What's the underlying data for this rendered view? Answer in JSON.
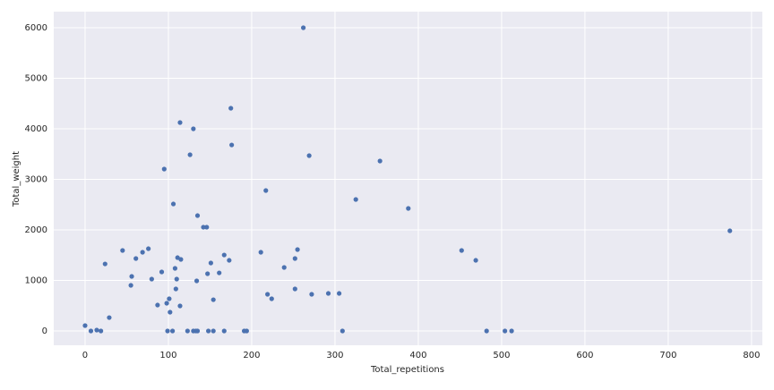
{
  "chart_data": {
    "type": "scatter",
    "xlabel": "Total_repetitions",
    "ylabel": "Total_weight",
    "x": [
      0,
      7,
      14,
      19,
      24,
      29,
      45,
      55,
      56,
      61,
      69,
      76,
      80,
      87,
      92,
      95,
      98,
      99,
      101,
      102,
      105,
      106,
      108,
      109,
      110,
      111,
      114,
      114,
      115,
      123,
      126,
      130,
      130,
      133,
      134,
      135,
      135,
      142,
      146,
      147,
      148,
      151,
      154,
      154,
      161,
      167,
      167,
      173,
      175,
      176,
      191,
      194,
      211,
      217,
      219,
      224,
      239,
      252,
      252,
      255,
      262,
      269,
      272,
      292,
      305,
      309,
      325,
      354,
      388,
      452,
      469,
      482,
      504,
      512,
      774
    ],
    "values": [
      106,
      0,
      18,
      0,
      1327,
      265,
      1593,
      903,
      1080,
      1434,
      1558,
      1628,
      1027,
      513,
      1168,
      3204,
      549,
      0,
      637,
      372,
      0,
      2513,
      1239,
      832,
      1027,
      1451,
      496,
      4124,
      1416,
      0,
      3487,
      0,
      4000,
      0,
      991,
      0,
      2283,
      2053,
      2053,
      1133,
      0,
      1345,
      619,
      0,
      1150,
      0,
      1504,
      1398,
      4407,
      3681,
      0,
      0,
      1558,
      2779,
      726,
      637,
      1257,
      832,
      1434,
      1611,
      6000,
      3469,
      726,
      743,
      743,
      0,
      2602,
      3363,
      2425,
      1593,
      1398,
      0,
      0,
      0,
      1982
    ],
    "color": "#4c72b0",
    "xlim": [
      -37.6,
      813
    ],
    "ylim": [
      -283,
      6319
    ],
    "xticks": [
      0,
      100,
      200,
      300,
      400,
      500,
      600,
      700,
      800
    ],
    "yticks": [
      0,
      1000,
      2000,
      3000,
      4000,
      5000,
      6000
    ],
    "grid": true
  }
}
